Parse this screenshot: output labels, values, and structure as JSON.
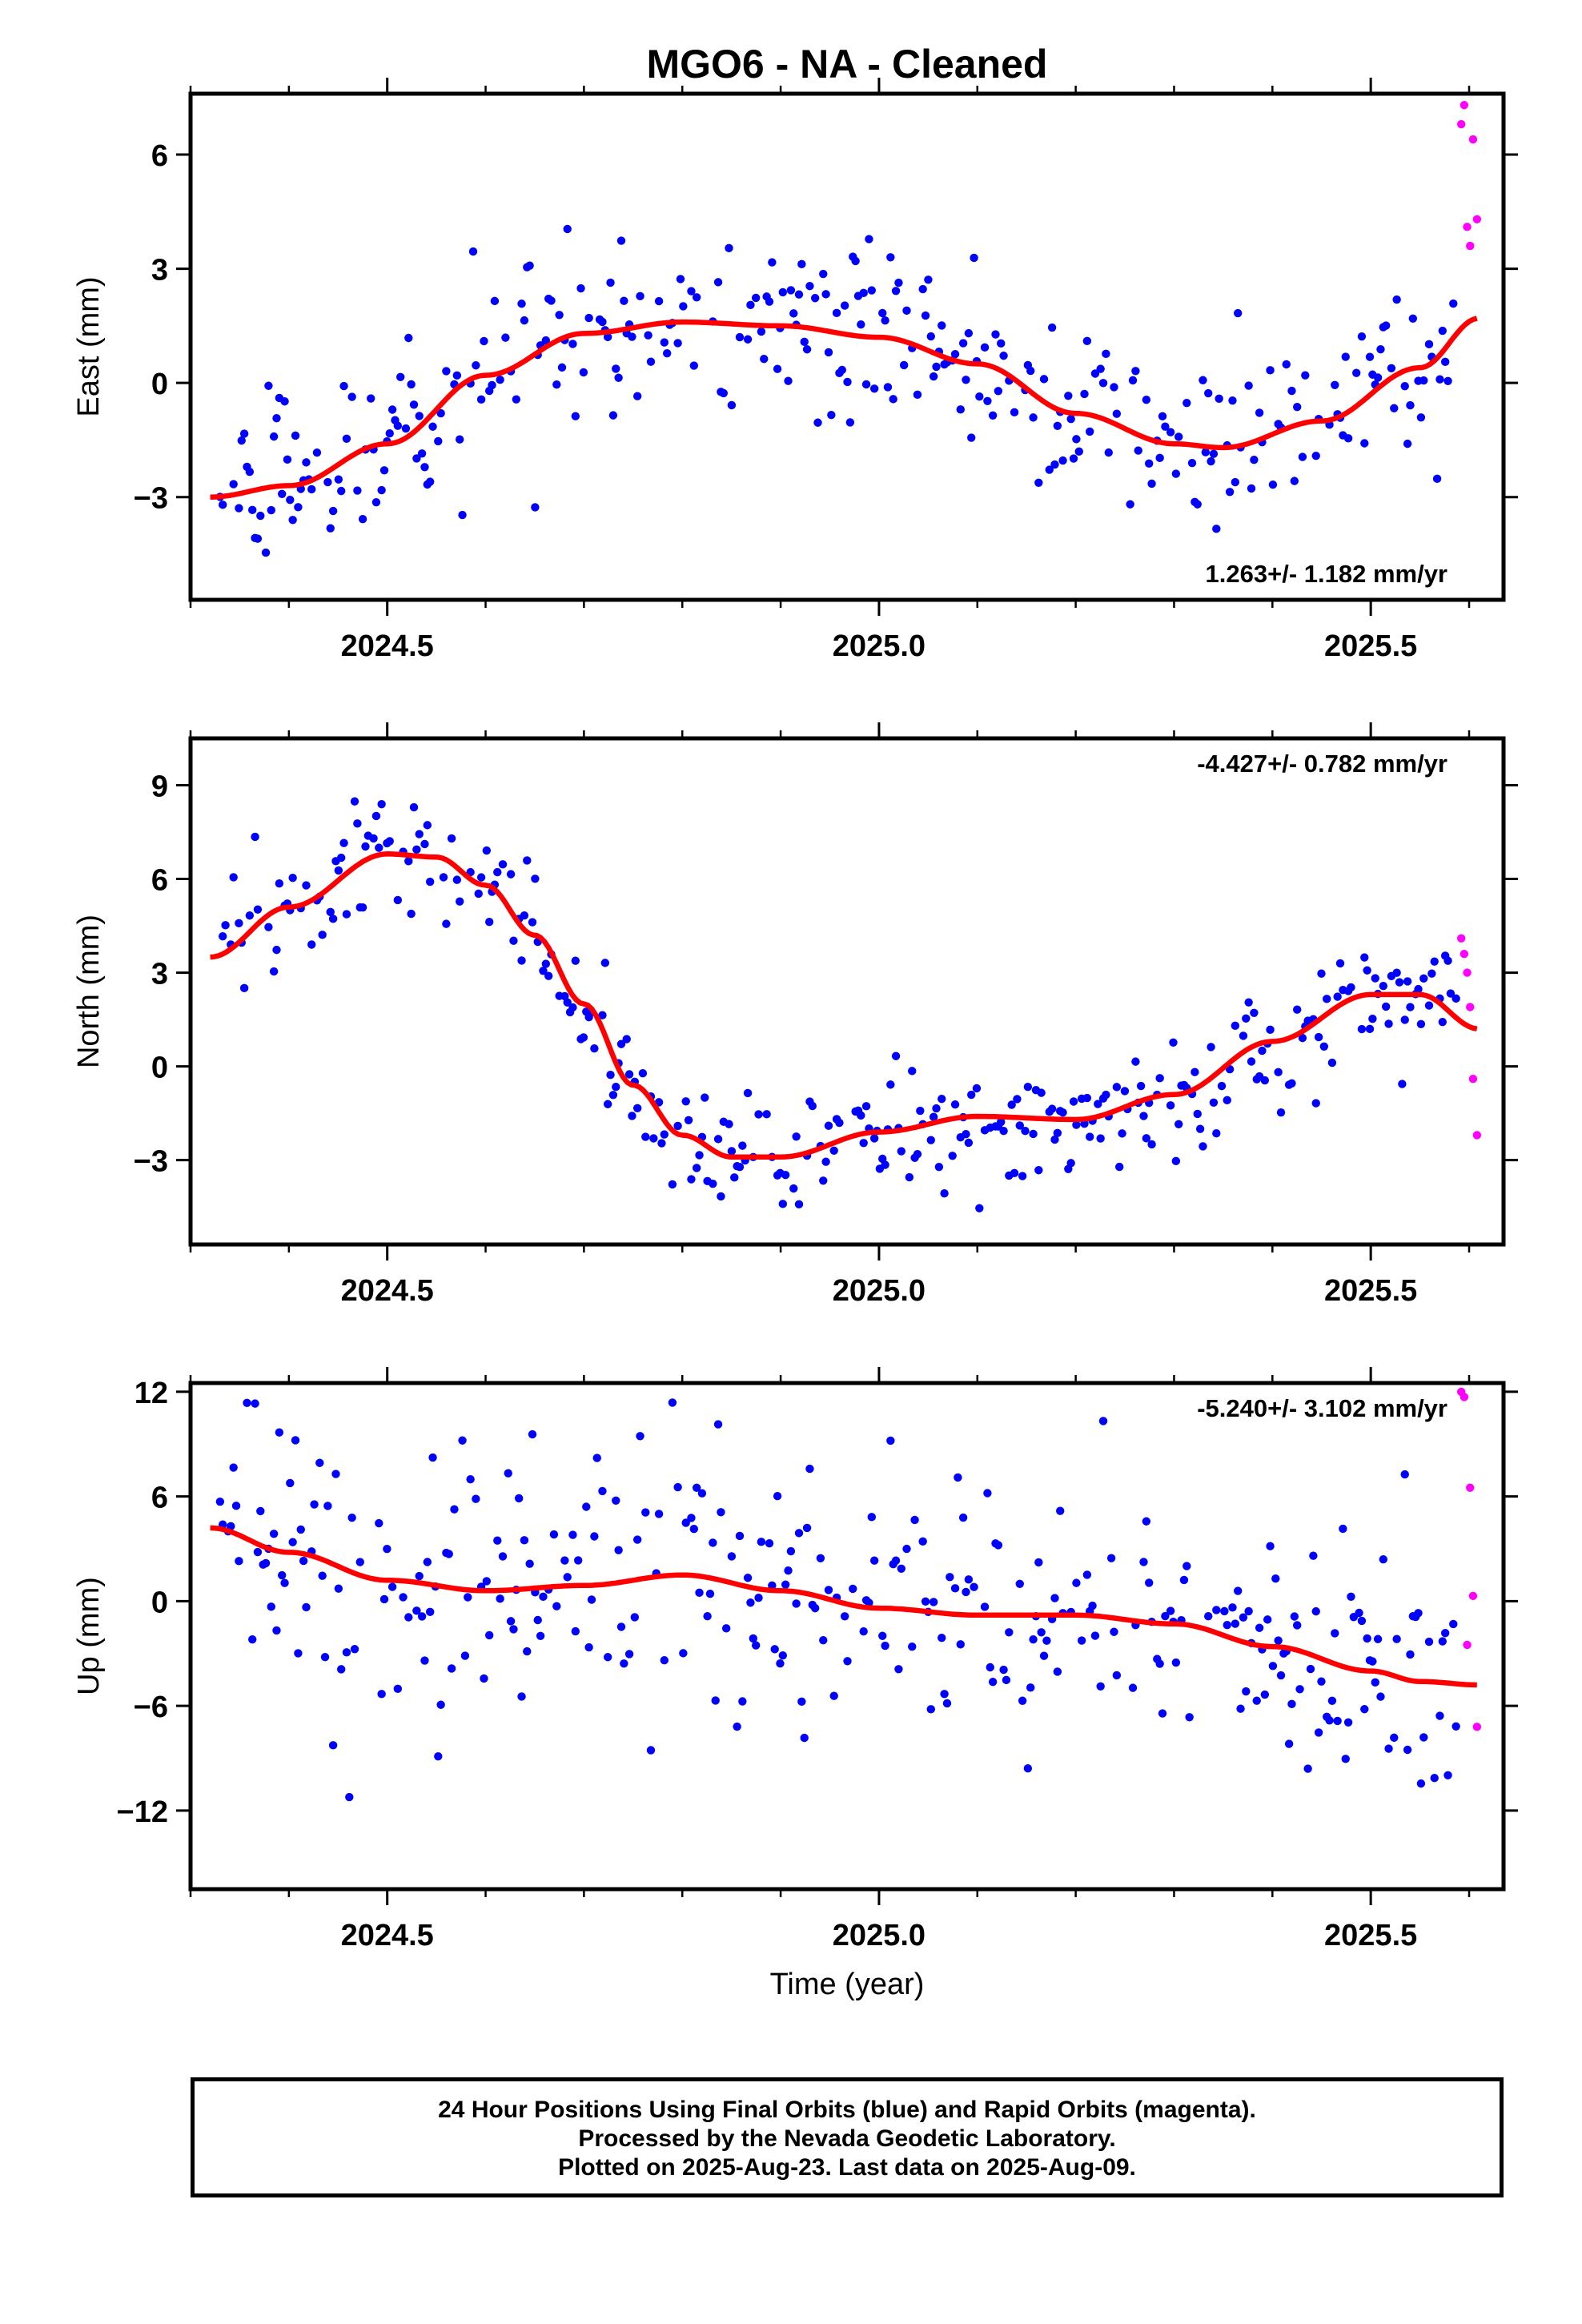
{
  "title": "MGO6  - NA - Cleaned",
  "x_axis_label": "Time (year)",
  "footer": {
    "line1": "24 Hour Positions Using Final Orbits (blue) and Rapid Orbits (magenta).",
    "line2": "Processed by the Nevada Geodetic Laboratory.",
    "line3": "Plotted on 2025-Aug-23. Last data on 2025-Aug-09."
  },
  "colors": {
    "final_orbits": "#0000ff",
    "rapid_orbits": "#ff00ff",
    "model": "#ff0000",
    "frame": "#000000"
  },
  "chart_data": [
    {
      "type": "scatter",
      "name": "east",
      "ylabel": "East (mm)",
      "rate_label": "1.263+/- 1.182 mm/yr",
      "rate_position": "bottom-right",
      "xlim": [
        2024.3,
        2025.635
      ],
      "ylim": [
        -5.7,
        7.6
      ],
      "xticks": [
        2024.5,
        2025.0,
        2025.5
      ],
      "xtick_labels": [
        "2024.5",
        "2025.0",
        "2025.5"
      ],
      "yticks": [
        -3,
        0,
        3,
        6
      ],
      "ytick_labels": [
        "−3",
        "0",
        "3",
        "6"
      ],
      "grid": false,
      "trend": {
        "x": [
          2024.32,
          2024.4,
          2024.5,
          2024.6,
          2024.7,
          2024.8,
          2024.9,
          2025.0,
          2025.1,
          2025.2,
          2025.3,
          2025.35,
          2025.45,
          2025.55,
          2025.61
        ],
        "y": [
          -3.0,
          -2.7,
          -1.6,
          0.2,
          1.3,
          1.6,
          1.5,
          1.2,
          0.5,
          -0.8,
          -1.6,
          -1.7,
          -1.0,
          0.4,
          1.7
        ]
      },
      "rapid_points": {
        "x": [
          2025.592,
          2025.595,
          2025.598,
          2025.601,
          2025.604,
          2025.608
        ],
        "y": [
          6.8,
          7.3,
          4.1,
          3.6,
          6.4,
          4.3
        ]
      }
    },
    {
      "type": "scatter",
      "name": "north",
      "ylabel": "North (mm)",
      "rate_label": "-4.427+/- 0.782 mm/yr",
      "rate_position": "top-right",
      "xlim": [
        2024.3,
        2025.635
      ],
      "ylim": [
        -5.7,
        10.5
      ],
      "xticks": [
        2024.5,
        2025.0,
        2025.5
      ],
      "xtick_labels": [
        "2024.5",
        "2025.0",
        "2025.5"
      ],
      "yticks": [
        -3,
        0,
        3,
        6,
        9
      ],
      "ytick_labels": [
        "−3",
        "0",
        "3",
        "6",
        "9"
      ],
      "grid": false,
      "trend": {
        "x": [
          2024.32,
          2024.4,
          2024.5,
          2024.55,
          2024.6,
          2024.65,
          2024.7,
          2024.75,
          2024.8,
          2024.85,
          2024.9,
          2025.0,
          2025.1,
          2025.2,
          2025.3,
          2025.4,
          2025.5,
          2025.55,
          2025.61
        ],
        "y": [
          3.5,
          5.1,
          6.8,
          6.7,
          5.8,
          4.2,
          2.0,
          -0.6,
          -2.2,
          -2.9,
          -2.9,
          -2.1,
          -1.6,
          -1.7,
          -0.9,
          0.8,
          2.3,
          2.3,
          1.2
        ]
      },
      "rapid_points": {
        "x": [
          2025.592,
          2025.595,
          2025.598,
          2025.601,
          2025.604,
          2025.608
        ],
        "y": [
          4.1,
          3.6,
          3.0,
          1.9,
          -0.4,
          -2.2
        ]
      }
    },
    {
      "type": "scatter",
      "name": "up",
      "ylabel": "Up (mm)",
      "rate_label": "-5.240+/- 3.102 mm/yr",
      "rate_position": "top-right",
      "xlim": [
        2024.3,
        2025.635
      ],
      "ylim": [
        -16.5,
        12.5
      ],
      "xticks": [
        2024.5,
        2025.0,
        2025.5
      ],
      "xtick_labels": [
        "2024.5",
        "2025.0",
        "2025.5"
      ],
      "yticks": [
        -12,
        -6,
        0,
        6,
        12
      ],
      "ytick_labels": [
        "−12",
        "−6",
        "0",
        "6",
        "12"
      ],
      "grid": false,
      "trend": {
        "x": [
          2024.32,
          2024.4,
          2024.5,
          2024.6,
          2024.7,
          2024.8,
          2024.9,
          2025.0,
          2025.1,
          2025.2,
          2025.3,
          2025.4,
          2025.5,
          2025.55,
          2025.61
        ],
        "y": [
          4.2,
          2.8,
          1.2,
          0.6,
          0.9,
          1.5,
          0.6,
          -0.4,
          -0.8,
          -0.8,
          -1.3,
          -2.6,
          -4.0,
          -4.6,
          -4.8
        ]
      },
      "rapid_points": {
        "x": [
          2025.592,
          2025.595,
          2025.598,
          2025.601,
          2025.604,
          2025.608
        ],
        "y": [
          12.0,
          11.7,
          -2.5,
          6.5,
          0.3,
          -7.2
        ]
      }
    }
  ]
}
